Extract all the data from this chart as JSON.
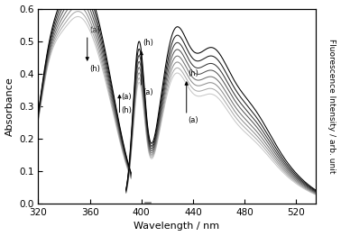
{
  "xmin": 320,
  "xmax": 535,
  "ymin": 0.0,
  "ymax": 0.6,
  "xlabel": "Wavelength / nm",
  "ylabel_left": "Absorbance",
  "ylabel_right": "Fluorescence Intensity / arb. unit",
  "xticks": [
    320,
    360,
    400,
    440,
    480,
    520
  ],
  "yticks": [
    0.0,
    0.1,
    0.2,
    0.3,
    0.4,
    0.5,
    0.6
  ],
  "n_curves": 8,
  "colors_abs": [
    "#000000",
    "#1c1c1c",
    "#383838",
    "#555555",
    "#717171",
    "#8d8d8d",
    "#aaaaaa",
    "#c6c6c6"
  ],
  "colors_fl": [
    "#c8c8c8",
    "#ababab",
    "#8e8e8e",
    "#717171",
    "#545454",
    "#373737",
    "#1a1a1a",
    "#000000"
  ],
  "abs_peak_amps": [
    0.525,
    0.51,
    0.494,
    0.479,
    0.464,
    0.45,
    0.437,
    0.425
  ],
  "fl_peak1_amps": [
    0.35,
    0.363,
    0.378,
    0.394,
    0.411,
    0.429,
    0.448,
    0.47
  ],
  "fl_peak2_amps": [
    0.27,
    0.283,
    0.297,
    0.311,
    0.326,
    0.342,
    0.36,
    0.38
  ],
  "fl_peak3_amps": [
    0.16,
    0.17,
    0.18,
    0.191,
    0.203,
    0.215,
    0.228,
    0.243
  ],
  "scatter_amps": [
    0.355,
    0.368,
    0.383,
    0.399,
    0.416,
    0.434,
    0.453,
    0.475
  ]
}
